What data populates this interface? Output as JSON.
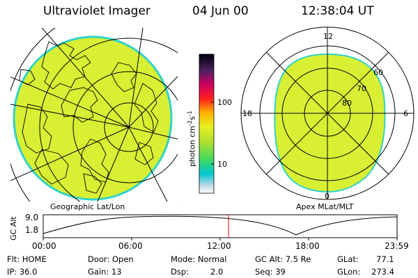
{
  "header": {
    "title": "Ultraviolet Imager",
    "date": "04 Jun 00",
    "time": "12:38:04 UT"
  },
  "left_panel": {
    "caption": "Geographic Lat/Lon"
  },
  "right_panel": {
    "caption": "Apex MLat/MLT",
    "mlt_labels": {
      "top": "12",
      "left": "18",
      "right": "6",
      "bottom": "0"
    },
    "lat_labels": [
      "60",
      "70",
      "80"
    ]
  },
  "colorbar": {
    "unit_main": "photon cm",
    "unit_exp1": "-2",
    "unit_mid": "s",
    "unit_exp2": "-1",
    "tick_100": "100",
    "tick_10": "10"
  },
  "altitude_plot": {
    "ylabel": "GC Alt",
    "y_tick_top": "9.0",
    "y_tick_bottom": "1.8",
    "x_ticks": [
      "00:00",
      "06:00",
      "12:00",
      "18:00",
      "23:59"
    ]
  },
  "info": {
    "flt": "Flt: HOME",
    "ip": "IP: 36.0",
    "door": "Door: Open",
    "gain": "Gain: 13",
    "mode": "Mode: Normal",
    "dsp_label": "Dsp:",
    "dsp_value": "2.0",
    "gc_alt": "GC Alt: 7.5 Re",
    "seq": "Seq: 39",
    "glat_label": "GLat:",
    "glat_value": "77.1",
    "glon_label": "GLon:",
    "glon_value": "273.4"
  },
  "colors": {
    "image_fill": "#d8ef34",
    "edge": "#2fd3c8",
    "cursor": "#ff0000"
  }
}
